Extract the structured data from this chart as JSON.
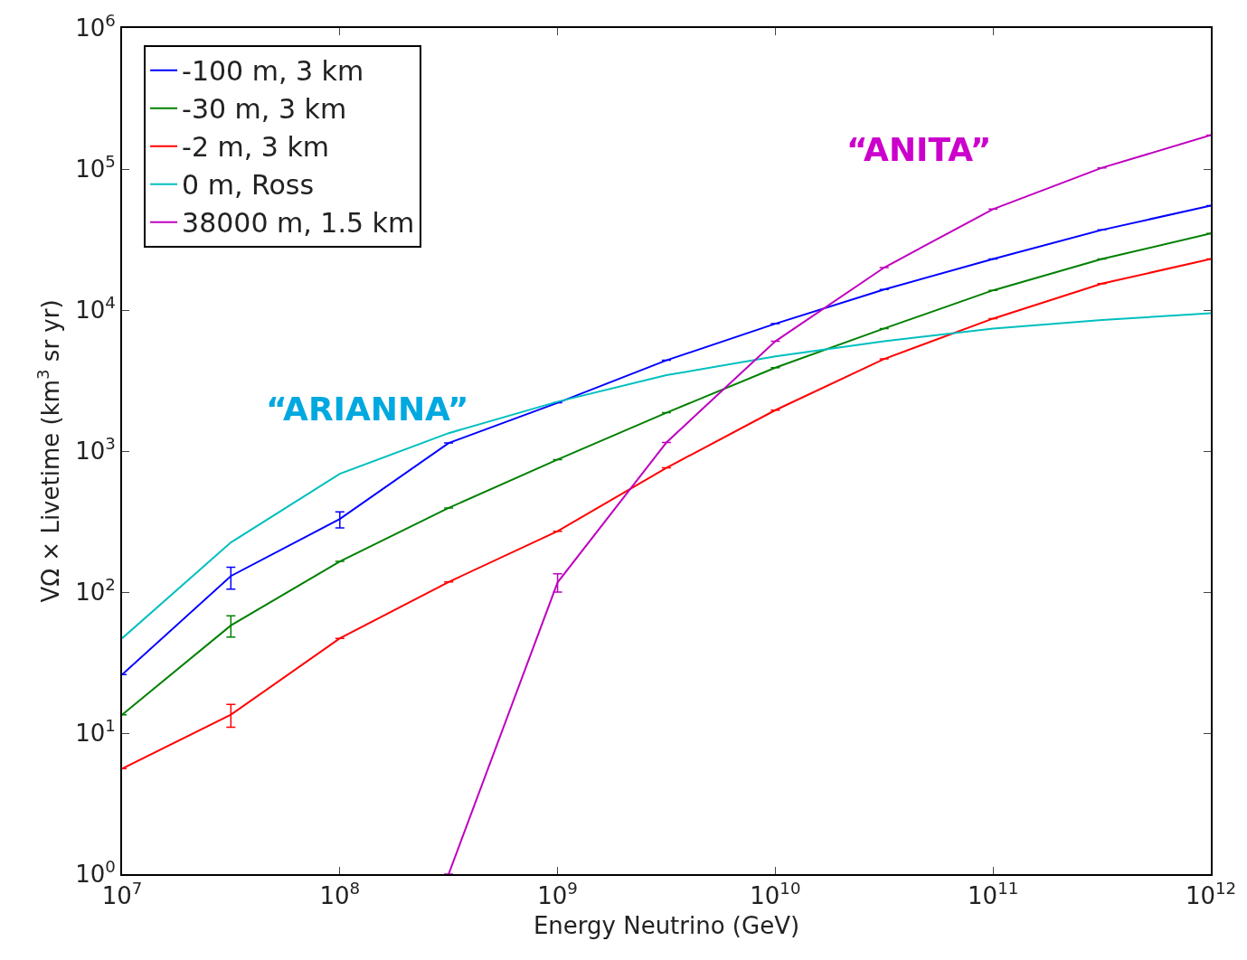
{
  "chart_data": {
    "type": "line",
    "xlabel": "Energy Neutrino (GeV)",
    "ylabel": "VΩ × Livetime (km$^{3}$ sr yr)",
    "log": "xy",
    "x": [
      10000000.0,
      31600000.0,
      100000000.0,
      316000000.0,
      1000000000.0,
      3160000000.0,
      10000000000.0,
      31600000000.0,
      100000000000.0,
      316000000000.0,
      1000000000000.0
    ],
    "xlim": [
      10000000.0,
      1000000000000.0
    ],
    "ylim": [
      1,
      1000000.0
    ],
    "xticks": [
      {
        "value": 10000000.0,
        "label": "10$^{7}$"
      },
      {
        "value": 100000000.0,
        "label": "10$^{8}$"
      },
      {
        "value": 1000000000.0,
        "label": "10$^{9}$"
      },
      {
        "value": 10000000000.0,
        "label": "10$^{10}$"
      },
      {
        "value": 100000000000.0,
        "label": "10$^{11}$"
      },
      {
        "value": 1000000000000.0,
        "label": "10$^{12}$"
      }
    ],
    "yticks": [
      {
        "value": 1,
        "label": "10$^{0}$"
      },
      {
        "value": 10,
        "label": "10$^{1}$"
      },
      {
        "value": 100,
        "label": "10$^{2}$"
      },
      {
        "value": 1000,
        "label": "10$^{3}$"
      },
      {
        "value": 10000,
        "label": "10$^{4}$"
      },
      {
        "value": 100000,
        "label": "10$^{5}$"
      },
      {
        "value": 1000000,
        "label": "10$^{6}$"
      }
    ],
    "series": [
      {
        "name": "-100 m, 3 km",
        "color": "#0000ff",
        "values": [
          26,
          130,
          330,
          1140,
          2200,
          4400,
          8000,
          14000,
          23000,
          37000,
          55000
        ],
        "errors": [
          null,
          [
            105,
            150
          ],
          [
            285,
            370
          ],
          null,
          null,
          null,
          null,
          null,
          null,
          null,
          null
        ]
      },
      {
        "name": "-30 m, 3 km",
        "color": "#008000",
        "values": [
          13.5,
          58,
          165,
          395,
          870,
          1870,
          3900,
          7400,
          13800,
          23000,
          35000
        ],
        "errors": [
          null,
          [
            48,
            68
          ],
          null,
          null,
          null,
          null,
          null,
          null,
          null,
          null,
          null
        ]
      },
      {
        "name": "-2 m, 3 km",
        "color": "#ff0000",
        "values": [
          5.6,
          13.5,
          47,
          118,
          270,
          760,
          1950,
          4500,
          8700,
          15400,
          23000
        ],
        "errors": [
          null,
          [
            11,
            16
          ],
          null,
          null,
          null,
          null,
          null,
          null,
          null,
          null,
          null
        ]
      },
      {
        "name": "0 m, Ross",
        "color": "#00bfbf",
        "values": [
          47,
          225,
          690,
          1340,
          2240,
          3450,
          4700,
          6000,
          7400,
          8500,
          9500
        ]
      },
      {
        "name": "38000 m, 1.5 km",
        "color": "#bf00bf",
        "values": [
          null,
          null,
          null,
          1.0,
          117,
          1150,
          6000,
          20000,
          52000,
          102000,
          174000
        ],
        "errors": [
          null,
          null,
          null,
          null,
          [
            100,
            135
          ],
          null,
          null,
          null,
          null,
          null,
          null
        ]
      }
    ],
    "annotations": [
      "“ARIANNA”",
      "“ANITA”"
    ],
    "legend": "top left",
    "grid": false,
    "marker": "none",
    "line_style": "solid"
  }
}
